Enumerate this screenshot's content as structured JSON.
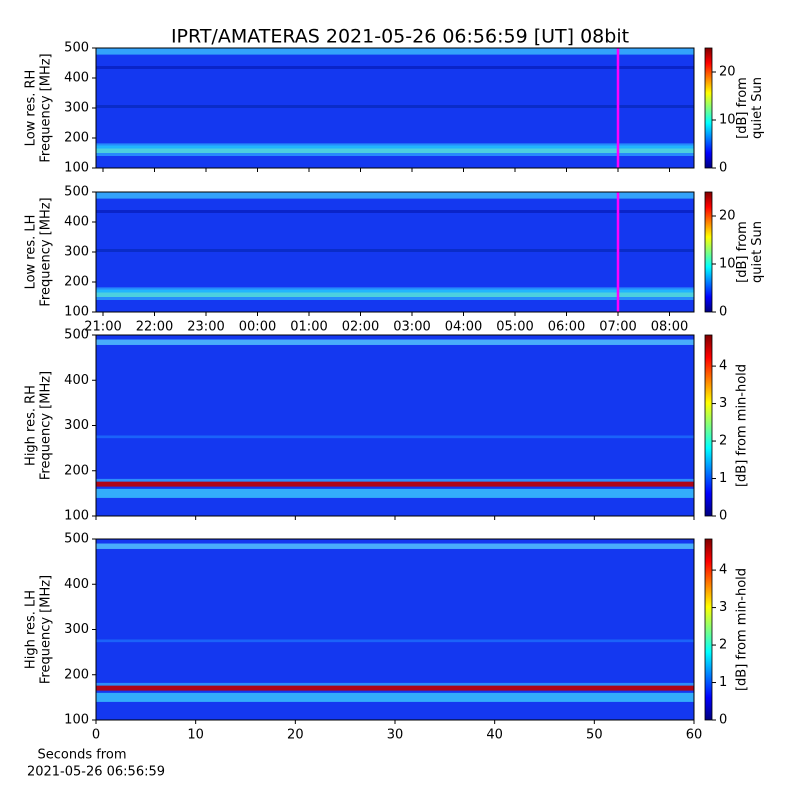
{
  "title": "IPRT/AMATERAS 2021-05-26 06:56:59 [UT]   08bit",
  "chart_data": [
    {
      "type": "spectrogram",
      "ylabel": [
        "Low res. RH",
        "Frequency [MHz]"
      ],
      "ylim": [
        100,
        500
      ],
      "yticks": [
        100,
        200,
        300,
        400,
        500
      ],
      "clim": [
        0,
        25
      ],
      "cticks": [
        0,
        10,
        20
      ],
      "clabel": [
        "[dB] from",
        "quiet Sun"
      ],
      "cursor_color": "#ff00ff"
    },
    {
      "type": "spectrogram",
      "ylabel": [
        "Low res. LH",
        "Frequency [MHz]"
      ],
      "ylim": [
        100,
        500
      ],
      "yticks": [
        100,
        200,
        300,
        400,
        500
      ],
      "xticks": [
        "21:00",
        "22:00",
        "23:00",
        "00:00",
        "01:00",
        "02:00",
        "03:00",
        "04:00",
        "05:00",
        "06:00",
        "07:00",
        "08:00"
      ],
      "clim": [
        0,
        25
      ],
      "cticks": [
        0,
        10,
        20
      ],
      "clabel": [
        "[dB] from",
        "quiet Sun"
      ],
      "cursor_color": "#ff00ff"
    },
    {
      "type": "spectrogram",
      "ylabel": [
        "High res. RH",
        "Frequency [MHz]"
      ],
      "ylim": [
        100,
        500
      ],
      "yticks": [
        100,
        200,
        300,
        400,
        500
      ],
      "xlim": [
        0,
        60
      ],
      "clim": [
        0,
        4.83
      ],
      "cticks": [
        0,
        1,
        2,
        3,
        4
      ],
      "clabel": [
        "[dB] from min-hold"
      ]
    },
    {
      "type": "spectrogram",
      "ylabel": [
        "High res. LH",
        "Frequency [MHz]"
      ],
      "ylim": [
        100,
        500
      ],
      "yticks": [
        100,
        200,
        300,
        400,
        500
      ],
      "xlim": [
        0,
        60
      ],
      "xticks": [
        0,
        10,
        20,
        30,
        40,
        50,
        60
      ],
      "xlabel": [
        "Seconds from",
        "2021-05-26 06:56:59"
      ],
      "clim": [
        0,
        4.83
      ],
      "cticks": [
        0,
        1,
        2,
        3,
        4
      ],
      "clabel": [
        "[dB] from min-hold"
      ]
    }
  ]
}
